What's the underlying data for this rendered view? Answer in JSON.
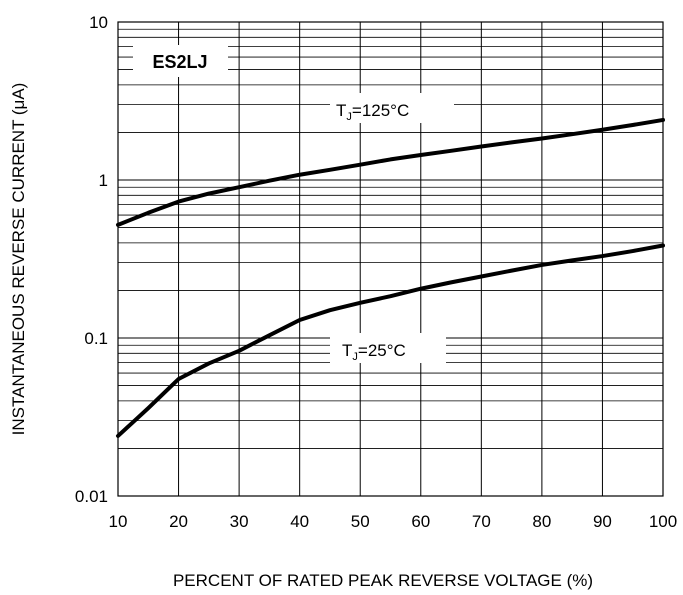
{
  "chart_data": {
    "type": "line",
    "title": "",
    "xlabel": "PERCENT OF RATED PEAK REVERSE VOLTAGE (%)",
    "ylabel": "INSTANTANEOUS REVERSE CURRENT (μA)",
    "xlim": [
      10,
      100
    ],
    "ylim": [
      0.01,
      10
    ],
    "yscale": "log",
    "grid": true,
    "x_ticks": [
      "10",
      "20",
      "30",
      "40",
      "50",
      "60",
      "70",
      "80",
      "90",
      "100"
    ],
    "y_ticks": [
      "0.01",
      "0.1",
      "1",
      "10"
    ],
    "device_label": "ES2LJ",
    "series": [
      {
        "label_main": "T",
        "label_sub": "J",
        "label_rest": "=125°C",
        "color": "#000000",
        "x": [
          10,
          15,
          20,
          25,
          30,
          35,
          40,
          45,
          50,
          55,
          60,
          65,
          70,
          75,
          80,
          85,
          90,
          95,
          100
        ],
        "y": [
          0.52,
          0.62,
          0.73,
          0.82,
          0.9,
          0.99,
          1.08,
          1.16,
          1.25,
          1.35,
          1.44,
          1.53,
          1.63,
          1.73,
          1.83,
          1.95,
          2.08,
          2.23,
          2.4
        ]
      },
      {
        "label_main": "T",
        "label_sub": "J",
        "label_rest": "=25°C",
        "color": "#000000",
        "x": [
          10,
          15,
          20,
          25,
          30,
          35,
          40,
          45,
          50,
          55,
          60,
          65,
          70,
          75,
          80,
          85,
          90,
          95,
          100
        ],
        "y": [
          0.024,
          0.036,
          0.055,
          0.069,
          0.083,
          0.104,
          0.13,
          0.15,
          0.167,
          0.184,
          0.205,
          0.225,
          0.245,
          0.267,
          0.29,
          0.31,
          0.33,
          0.355,
          0.385
        ]
      }
    ]
  }
}
